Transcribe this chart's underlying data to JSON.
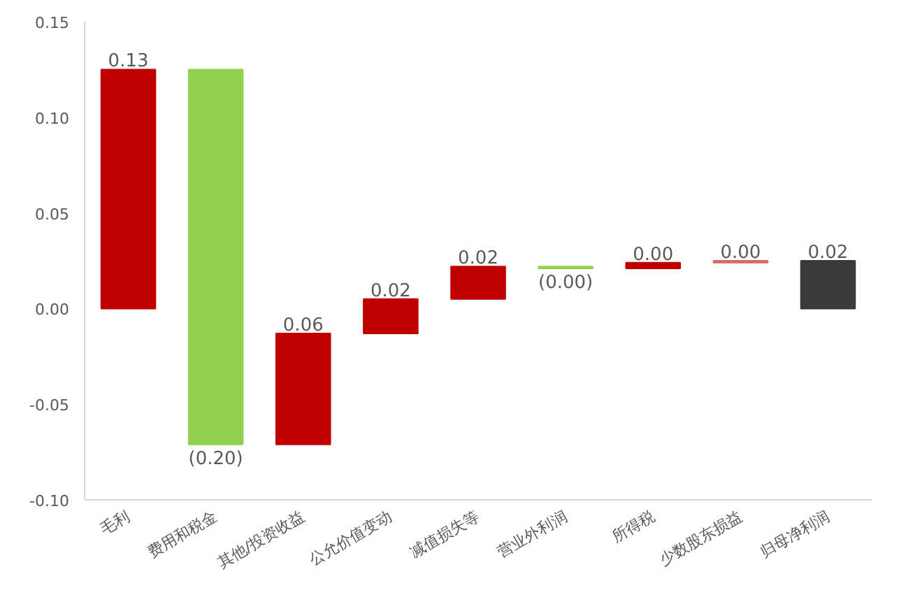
{
  "chart_data": {
    "type": "bar",
    "categories": [
      "毛利",
      "费用和税金",
      "其他/投资收益",
      "公允价值变动",
      "减值损失等",
      "营业外利润",
      "所得税",
      "少数股东损益",
      "归母净利润"
    ],
    "values": [
      0.125,
      -0.196,
      0.058,
      0.018,
      0.017,
      -0.001,
      0.003,
      0.001,
      0.025
    ],
    "base": [
      0,
      0.125,
      -0.071,
      -0.013,
      0.005,
      0.022,
      0.021,
      0.024,
      0
    ],
    "colors": [
      "#c00000",
      "#92d050",
      "#c00000",
      "#c00000",
      "#c00000",
      "#92d050",
      "#c00000",
      "#e06666",
      "#3a3a3a"
    ],
    "value_labels": [
      "0.13",
      "(0.20)",
      "0.06",
      "0.02",
      "0.02",
      "(0.00)",
      "0.00",
      "0.00",
      "0.02"
    ],
    "ylim": [
      -0.1,
      0.15
    ],
    "yticks": [
      {
        "value": -0.1,
        "label": "-0.10"
      },
      {
        "value": -0.05,
        "label": "-0.05"
      },
      {
        "value": 0,
        "label": "0.00"
      },
      {
        "value": 0.05,
        "label": "0.05"
      },
      {
        "value": 0.1,
        "label": "0.10"
      },
      {
        "value": 0.15,
        "label": "0.15"
      }
    ],
    "grid": false
  }
}
